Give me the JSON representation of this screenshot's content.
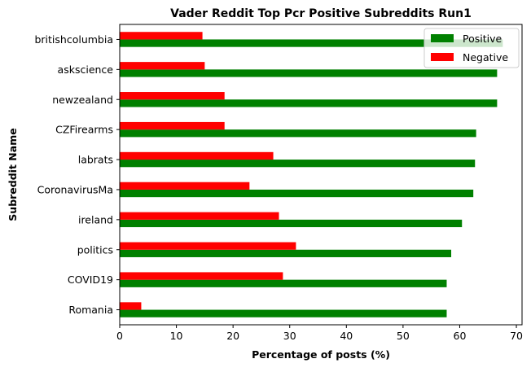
{
  "chart_data": {
    "type": "bar",
    "orientation": "horizontal",
    "title": "Vader Reddit Top Pcr Positive Subreddits Run1",
    "xlabel": "Percentage of posts (%)",
    "ylabel": "Subreddit Name",
    "categories": [
      "Romania",
      "COVID19",
      "politics",
      "ireland",
      "CoronavirusMa",
      "labrats",
      "CZFirearms",
      "newzealand",
      "askscience",
      "britishcolumbia"
    ],
    "series": [
      {
        "name": "Positive",
        "color": "#008000",
        "values": [
          57.7,
          57.7,
          58.5,
          60.4,
          62.4,
          62.7,
          62.9,
          66.6,
          66.6,
          67.6
        ]
      },
      {
        "name": "Negative",
        "color": "#ff0000",
        "values": [
          3.8,
          28.8,
          31.1,
          28.1,
          22.9,
          27.1,
          18.5,
          18.5,
          15.0,
          14.6
        ]
      }
    ],
    "xlim": [
      0,
      71
    ],
    "xticks": [
      0,
      10,
      20,
      30,
      40,
      50,
      60,
      70
    ],
    "grid": false,
    "legend_position": "top-right"
  }
}
